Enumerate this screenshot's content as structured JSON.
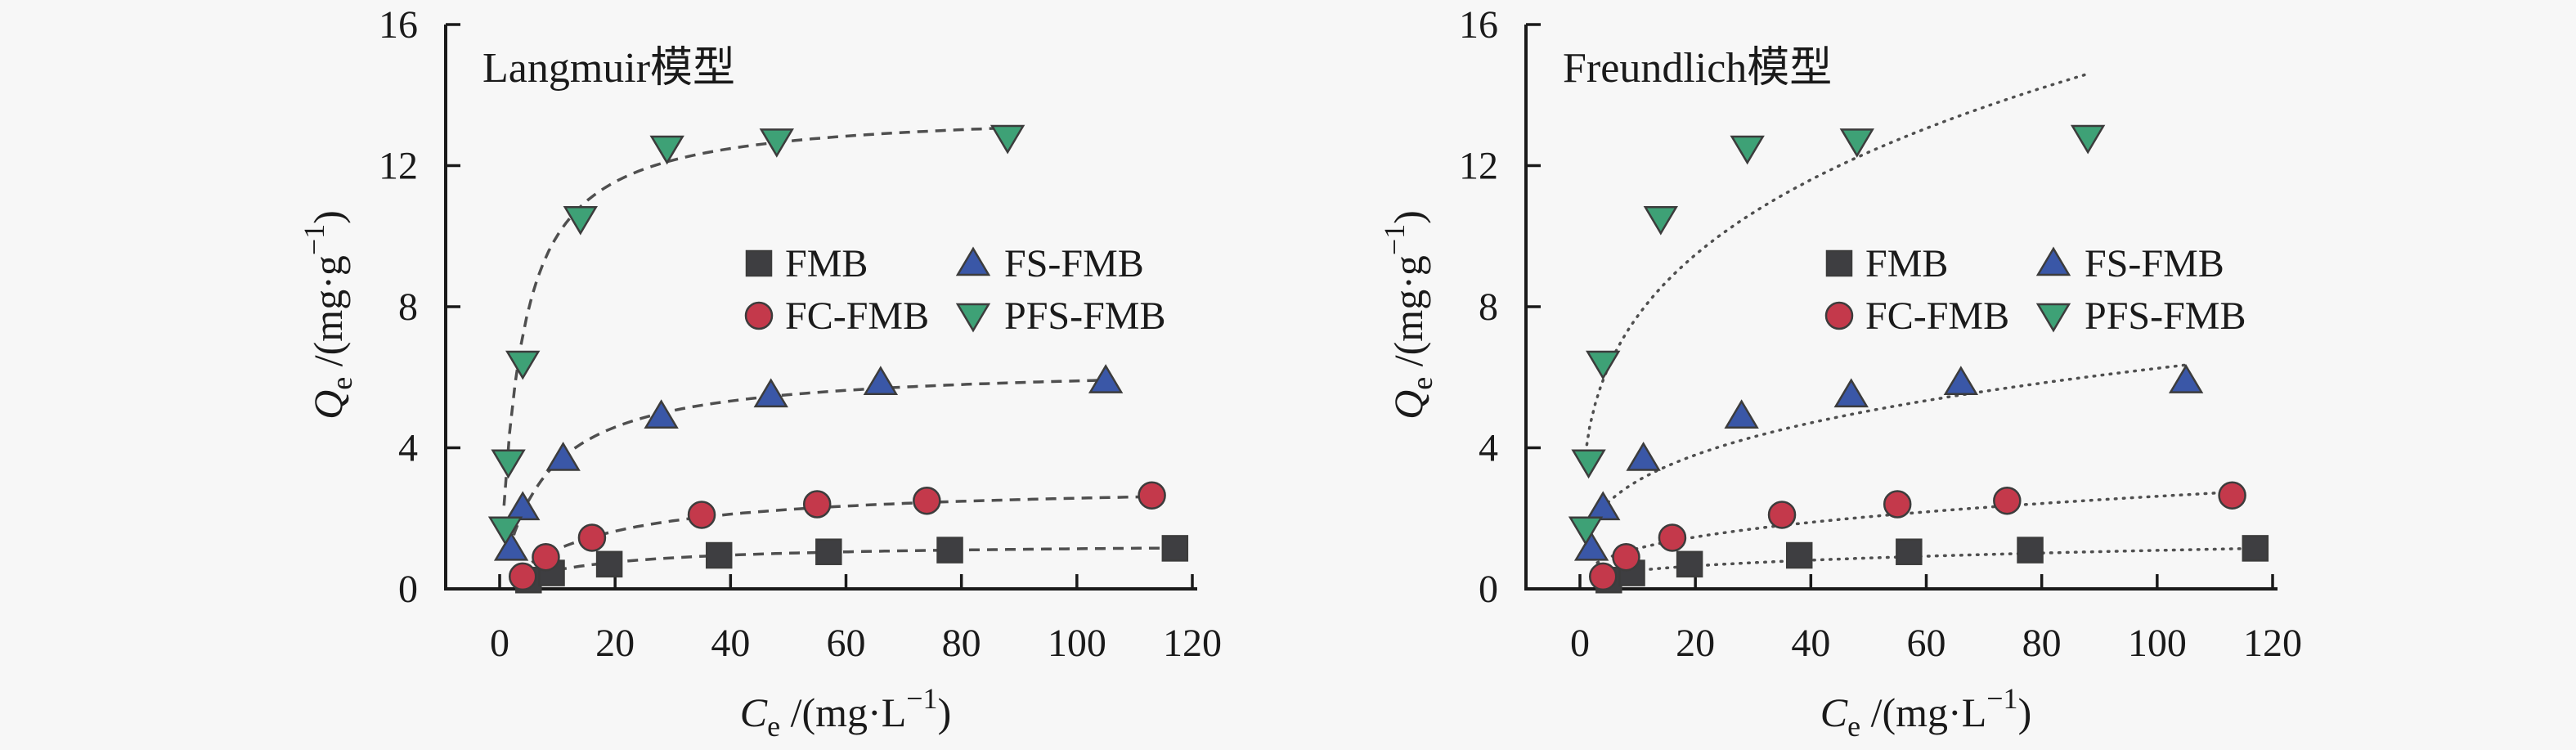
{
  "figure": {
    "background": "#f7f7f7",
    "axis_color": "#1a1a1a",
    "curve_color": "#4f4f4f",
    "marker_edge_color": "#3c3c3c"
  },
  "chart_data": [
    {
      "type": "scatter",
      "panel": "left",
      "title": "Langmuir模型",
      "curve_model": "langmuir",
      "curve_style": "dashed",
      "xlabel": "Ce /(mg·L−1)",
      "ylabel": "Qe /(mg·g−1)",
      "xlabel_parts": {
        "sym": "C",
        "sub": "e",
        "mid": " /(mg·L",
        "sup": "−1",
        "end": ")"
      },
      "ylabel_parts": {
        "sym": "Q",
        "sub": "e",
        "mid": " /(mg·g",
        "sup": "−1",
        "end": ")"
      },
      "xlim": [
        0,
        120
      ],
      "ylim": [
        0,
        16
      ],
      "xticks": [
        0,
        20,
        40,
        60,
        80,
        100,
        120
      ],
      "yticks": [
        0,
        4,
        8,
        12,
        16
      ],
      "legend_position": "center-right-inside",
      "grid": false,
      "series": [
        {
          "name": "FMB",
          "marker": "square",
          "color": "#3e3e41",
          "points": [
            [
              5,
              0.25
            ],
            [
              9,
              0.45
            ],
            [
              19,
              0.7
            ],
            [
              38,
              0.95
            ],
            [
              57,
              1.05
            ],
            [
              78,
              1.1
            ],
            [
              117,
              1.15
            ]
          ],
          "fit": {
            "qmax": 1.3,
            "k": 0.07
          }
        },
        {
          "name": "FC-FMB",
          "marker": "circle",
          "color": "#c4394b",
          "points": [
            [
              4,
              0.35
            ],
            [
              8,
              0.9
            ],
            [
              16,
              1.45
            ],
            [
              35,
              2.1
            ],
            [
              55,
              2.4
            ],
            [
              74,
              2.5
            ],
            [
              113,
              2.65
            ]
          ],
          "fit": {
            "qmax": 3.0,
            "k": 0.06
          }
        },
        {
          "name": "FS-FMB",
          "marker": "triangle-up",
          "color": "#3a57a7",
          "points": [
            [
              2,
              1.15
            ],
            [
              4,
              2.3
            ],
            [
              11,
              3.7
            ],
            [
              28,
              4.9
            ],
            [
              47,
              5.5
            ],
            [
              66,
              5.85
            ],
            [
              105,
              5.9
            ]
          ],
          "fit": {
            "qmax": 6.35,
            "k": 0.13
          }
        },
        {
          "name": "PFS-FMB",
          "marker": "triangle-down",
          "color": "#3ea176",
          "points": [
            [
              1,
              1.7
            ],
            [
              1.5,
              3.6
            ],
            [
              4,
              6.4
            ],
            [
              14,
              10.5
            ],
            [
              29,
              12.5
            ],
            [
              48,
              12.7
            ],
            [
              88,
              12.8
            ]
          ],
          "fit": {
            "qmax": 13.6,
            "k": 0.28
          }
        }
      ]
    },
    {
      "type": "scatter",
      "panel": "right",
      "title": "Freundlich模型",
      "curve_model": "freundlich",
      "curve_style": "dotted",
      "xlabel": "Ce /(mg·L−1)",
      "ylabel": "Qe /(mg·g−1)",
      "xlabel_parts": {
        "sym": "C",
        "sub": "e",
        "mid": " /(mg·L",
        "sup": "−1",
        "end": ")"
      },
      "ylabel_parts": {
        "sym": "Q",
        "sub": "e",
        "mid": " /(mg·g",
        "sup": "−1",
        "end": ")"
      },
      "xlim": [
        0,
        120
      ],
      "ylim": [
        0,
        16
      ],
      "xticks": [
        0,
        20,
        40,
        60,
        80,
        100,
        120
      ],
      "yticks": [
        0,
        4,
        8,
        12,
        16
      ],
      "legend_position": "center-right-inside",
      "grid": false,
      "series": [
        {
          "name": "FMB",
          "marker": "square",
          "color": "#3e3e41",
          "points": [
            [
              5,
              0.25
            ],
            [
              9,
              0.45
            ],
            [
              19,
              0.7
            ],
            [
              38,
              0.95
            ],
            [
              57,
              1.05
            ],
            [
              78,
              1.1
            ],
            [
              117,
              1.15
            ]
          ],
          "fit": {
            "kf": 0.25,
            "n_inv": 0.32
          }
        },
        {
          "name": "FC-FMB",
          "marker": "circle",
          "color": "#c4394b",
          "points": [
            [
              4,
              0.35
            ],
            [
              8,
              0.9
            ],
            [
              16,
              1.45
            ],
            [
              35,
              2.1
            ],
            [
              55,
              2.4
            ],
            [
              74,
              2.5
            ],
            [
              113,
              2.65
            ]
          ],
          "fit": {
            "kf": 0.5,
            "n_inv": 0.36
          }
        },
        {
          "name": "FS-FMB",
          "marker": "triangle-up",
          "color": "#3a57a7",
          "points": [
            [
              2,
              1.15
            ],
            [
              4,
              2.3
            ],
            [
              11,
              3.7
            ],
            [
              28,
              4.9
            ],
            [
              47,
              5.5
            ],
            [
              66,
              5.85
            ],
            [
              105,
              5.9
            ]
          ],
          "fit": {
            "kf": 1.5,
            "n_inv": 0.31
          }
        },
        {
          "name": "PFS-FMB",
          "marker": "triangle-down",
          "color": "#3ea176",
          "points": [
            [
              1,
              1.7
            ],
            [
              1.5,
              3.6
            ],
            [
              4,
              6.4
            ],
            [
              14,
              10.5
            ],
            [
              29,
              12.5
            ],
            [
              48,
              12.7
            ],
            [
              88,
              12.8
            ]
          ],
          "fit": {
            "kf": 3.95,
            "n_inv": 0.292
          }
        }
      ]
    }
  ]
}
